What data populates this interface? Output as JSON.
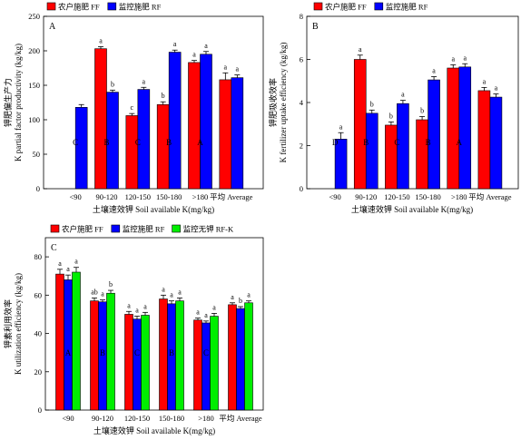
{
  "figure": {
    "panels": [
      {
        "panel_label": "A",
        "ylabel": "K partial factor productivity (kg/kg)",
        "ylabel_cn": "钾肥偏生产力",
        "xlabel": "土壤速效钾  Soil available K(mg/kg)",
        "legend": [
          "农户施肥 FF",
          "监控施肥 RF"
        ]
      },
      {
        "panel_label": "B",
        "ylabel": "K fertilizer uptake efficiency (kg/kg)",
        "ylabel_cn": "钾肥吸收效率",
        "xlabel": "土壤速效钾  Soil available K(mg/kg)",
        "legend": [
          "农户施肥 FF",
          "监控施肥 RF"
        ]
      },
      {
        "panel_label": "C",
        "ylabel": "K utilization efficiency (kg/kg)",
        "ylabel_cn": "钾素利用效率",
        "xlabel": "土壤速效钾  Soil available K(mg/kg)",
        "legend": [
          "农户施肥 FF",
          "监控施肥 RF",
          "监控无钾 RF-K"
        ]
      }
    ]
  },
  "chart_data": [
    {
      "type": "bar",
      "panel": "A",
      "categories": [
        "<90",
        "90-120",
        "120-150",
        "150-180",
        ">180",
        "平均 Average"
      ],
      "ylim": [
        0,
        250
      ],
      "yticks": [
        0,
        50,
        100,
        150,
        200,
        250
      ],
      "grid": false,
      "legend_position": "top-left",
      "series": [
        {
          "name": "农户施肥 FF",
          "color": "#ff0000",
          "values": [
            null,
            203,
            106,
            122,
            183,
            158
          ],
          "errors": [
            0,
            3,
            3,
            4,
            3,
            10
          ],
          "sig": [
            "",
            "a",
            "c",
            "b",
            "a",
            "a"
          ]
        },
        {
          "name": "监控施肥 RF",
          "color": "#0000ff",
          "values": [
            118,
            140,
            144,
            198,
            195,
            161
          ],
          "errors": [
            4,
            3,
            3,
            3,
            4,
            4
          ],
          "sig": [
            "",
            "b",
            "a",
            "a",
            "a",
            "a"
          ]
        }
      ],
      "group_letters": [
        "C",
        "B",
        "C",
        "B",
        "A",
        ""
      ]
    },
    {
      "type": "bar",
      "panel": "B",
      "categories": [
        "<90",
        "90-120",
        "120-150",
        "150-180",
        ">180",
        "平均 Average"
      ],
      "ylim": [
        0,
        8
      ],
      "yticks": [
        0,
        2,
        4,
        6,
        8
      ],
      "grid": false,
      "legend_position": "top-left",
      "series": [
        {
          "name": "农户施肥 FF",
          "color": "#ff0000",
          "values": [
            null,
            6.0,
            2.95,
            3.2,
            5.6,
            4.55
          ],
          "errors": [
            0,
            0.2,
            0.15,
            0.15,
            0.15,
            0.15
          ],
          "sig": [
            "",
            "a",
            "b",
            "b",
            "a",
            "a"
          ]
        },
        {
          "name": "监控施肥 RF",
          "color": "#0000ff",
          "values": [
            2.3,
            3.5,
            3.95,
            5.05,
            5.65,
            4.25
          ],
          "errors": [
            0.3,
            0.15,
            0.15,
            0.15,
            0.15,
            0.15
          ],
          "sig": [
            "a",
            "b",
            "a",
            "a",
            "a",
            "a"
          ]
        }
      ],
      "group_letters": [
        "D",
        "B",
        "C",
        "B",
        "A",
        ""
      ]
    },
    {
      "type": "bar",
      "panel": "C",
      "categories": [
        "<90",
        "90-120",
        "120-150",
        "150-180",
        ">180",
        "平均 Average"
      ],
      "ylim": [
        0,
        90
      ],
      "yticks": [
        0,
        20,
        40,
        60,
        80
      ],
      "grid": false,
      "legend_position": "top-left",
      "series": [
        {
          "name": "农户施肥 FF",
          "color": "#ff0000",
          "values": [
            71,
            57,
            50,
            58,
            47,
            55
          ],
          "errors": [
            2.5,
            1.5,
            1.5,
            2,
            1,
            1
          ],
          "sig": [
            "a",
            "ab",
            "a",
            "a",
            "a",
            "a"
          ]
        },
        {
          "name": "监控施肥 RF",
          "color": "#0000ff",
          "values": [
            68,
            56.5,
            47.5,
            55.5,
            45.5,
            53
          ],
          "errors": [
            2.5,
            1,
            1.5,
            1.5,
            1,
            1
          ],
          "sig": [
            "a",
            "a",
            "a",
            "a",
            "a",
            "b"
          ]
        },
        {
          "name": "监控无钾 RF-K",
          "color": "#00ee00",
          "values": [
            72,
            61,
            49.5,
            57,
            49,
            56
          ],
          "errors": [
            2.5,
            1.5,
            1.5,
            1.5,
            1.5,
            1
          ],
          "sig": [
            "a",
            "b",
            "a",
            "a",
            "a",
            "a"
          ]
        }
      ],
      "group_letters": [
        "A",
        "B",
        "C",
        "B",
        "C",
        ""
      ]
    }
  ]
}
